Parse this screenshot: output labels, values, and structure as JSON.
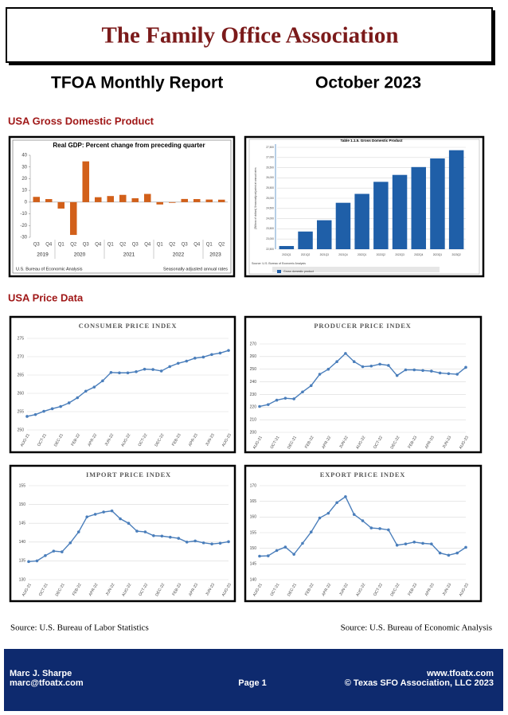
{
  "header": {
    "title": "The Family Office Association"
  },
  "report": {
    "title": "TFOA Monthly Report",
    "date": "October 2023"
  },
  "sections": {
    "gdp": "USA Gross Domestic Product",
    "prices": "USA Price Data"
  },
  "sources": {
    "left": "Source: U.S. Bureau of Labor Statistics",
    "right": "Source: U.S. Bureau of Economic Analysis"
  },
  "footer": {
    "name": "Marc J. Sharpe",
    "email": "marc@tfoatx.com",
    "page": "Page 1",
    "website": "www.tfoatx.com",
    "copyright": "© Texas SFO Association, LLC 2023"
  },
  "chart_data": [
    {
      "type": "bar",
      "title": "Real GDP: Percent change from preceding quarter",
      "categories": [
        "Q3",
        "Q4",
        "Q1",
        "Q2",
        "Q3",
        "Q4",
        "Q1",
        "Q2",
        "Q3",
        "Q4",
        "Q1",
        "Q2",
        "Q3",
        "Q4",
        "Q1",
        "Q2"
      ],
      "years": [
        "2019",
        null,
        "2020",
        null,
        null,
        null,
        "2021",
        null,
        null,
        null,
        "2022",
        null,
        null,
        null,
        "2023",
        null
      ],
      "values": [
        4.5,
        2.6,
        -5.5,
        -28.0,
        34.8,
        4.2,
        5.2,
        6.2,
        3.3,
        7.0,
        -2.0,
        -0.6,
        2.7,
        2.6,
        2.2,
        2.1
      ],
      "color": "#d2601a",
      "ylim": [
        -30,
        40
      ],
      "yticks": [
        -30,
        -20,
        -10,
        0,
        10,
        20,
        30,
        40
      ],
      "grid": false,
      "source": "U.S. Bureau of Economic Analysis",
      "note": "Seasonally adjusted annual rates"
    },
    {
      "type": "bar",
      "title": "Table 1.1.5. Gross Domestic Product",
      "ylabel": "[Billions of dollars] Seasonally adjusted at annual rates",
      "categories": [
        "2021Q1",
        "2021Q2",
        "2021Q3",
        "2021Q4",
        "2022Q1",
        "2022Q2",
        "2022Q3",
        "2022Q4",
        "2023Q1",
        "2023Q2"
      ],
      "series": [
        {
          "name": "Gross domestic product",
          "color": "#1f5fa8",
          "values": [
            22657,
            23368,
            23922,
            24778,
            25215,
            25806,
            26145,
            26531,
            26953,
            27357
          ]
        }
      ],
      "ylim": [
        22500,
        27500
      ],
      "yticks": [
        {
          "value": 22500,
          "label": "22,500"
        },
        {
          "value": 23000,
          "label": "23,000"
        },
        {
          "value": 23500,
          "label": "23,500"
        },
        {
          "value": 24000,
          "label": "24,000"
        },
        {
          "value": 24500,
          "label": "24,500"
        },
        {
          "value": 25000,
          "label": "25,000"
        },
        {
          "value": 25500,
          "label": "25,500"
        },
        {
          "value": 26000,
          "label": "26,000"
        },
        {
          "value": 26500,
          "label": "26,500"
        },
        {
          "value": 27000,
          "label": "27,000"
        },
        {
          "value": 27500,
          "label": "27,500"
        }
      ],
      "grid": true,
      "source": "Source: U.S. Bureau of Economic Analysis"
    },
    {
      "type": "line",
      "title": "CONSUMER PRICE INDEX",
      "categories": [
        "AUG-21",
        null,
        "OCT-21",
        null,
        "DEC-21",
        null,
        "FEB-22",
        null,
        "APR-22",
        null,
        "JUN-22",
        null,
        "AUG-22",
        null,
        "OCT-22",
        null,
        "DEC-22",
        null,
        "FEB-23",
        null,
        "APR-23",
        null,
        "JUN-23",
        null,
        "AUG-23"
      ],
      "values": [
        253.7,
        254.2,
        255.1,
        255.8,
        256.4,
        257.4,
        258.8,
        260.6,
        261.7,
        263.4,
        265.7,
        265.6,
        265.6,
        265.9,
        266.6,
        266.5,
        266.1,
        267.3,
        268.2,
        268.8,
        269.6,
        269.9,
        270.6,
        271.0,
        271.7
      ],
      "color": "#4a7ebb",
      "ylim": [
        250,
        275
      ],
      "yticks": [
        250,
        255,
        260,
        265,
        270,
        275
      ],
      "grid": true
    },
    {
      "type": "line",
      "title": "PRODUCER PRICE INDEX",
      "categories": [
        "AUG-21",
        null,
        "OCT-21",
        null,
        "DEC-21",
        null,
        "FEB-22",
        null,
        "APR-22",
        null,
        "JUN-22",
        null,
        "AUG-22",
        null,
        "OCT-22",
        null,
        "DEC-22",
        null,
        "FEB-23",
        null,
        "APR-23",
        null,
        "JUN-23",
        null,
        "AUG-23"
      ],
      "values": [
        220.5,
        222,
        225.5,
        227,
        226.5,
        232,
        237,
        246,
        250,
        256,
        262.5,
        256,
        252,
        252.5,
        254,
        253,
        245,
        249.5,
        249.5,
        249,
        248.5,
        247,
        246.5,
        246,
        251.5
      ],
      "color": "#4a7ebb",
      "ylim": [
        200,
        270
      ],
      "yticks": [
        200,
        210,
        220,
        230,
        240,
        250,
        260,
        270
      ],
      "grid": true
    },
    {
      "type": "line",
      "title": "IMPORT PRICE INDEX",
      "categories": [
        "AUG-21",
        null,
        "OCT-21",
        null,
        "DEC-21",
        null,
        "FEB-22",
        null,
        "APR-22",
        null,
        "JUN-22",
        null,
        "AUG-22",
        null,
        "OCT-22",
        null,
        "DEC-22",
        null,
        "FEB-23",
        null,
        "APR-23",
        null,
        "JUN-23",
        null,
        "AUG-23"
      ],
      "values": [
        134.8,
        135.0,
        136.4,
        137.6,
        137.4,
        139.8,
        142.7,
        146.7,
        147.4,
        148.0,
        148.3,
        146.2,
        145.0,
        142.9,
        142.7,
        141.7,
        141.6,
        141.3,
        141.0,
        140.0,
        140.3,
        139.8,
        139.5,
        139.7,
        140.1
      ],
      "color": "#4a7ebb",
      "ylim": [
        130,
        155
      ],
      "yticks": [
        130,
        135,
        140,
        145,
        150,
        155
      ],
      "grid": true
    },
    {
      "type": "line",
      "title": "EXPORT PRICE INDEX",
      "categories": [
        "AUG-21",
        null,
        "OCT-21",
        null,
        "DEC-21",
        null,
        "FEB-22",
        null,
        "APR-22",
        null,
        "JUN-22",
        null,
        "AUG-22",
        null,
        "OCT-22",
        null,
        "DEC-22",
        null,
        "FEB-23",
        null,
        "APR-23",
        null,
        "JUN-23",
        null,
        "AUG-23"
      ],
      "values": [
        147.5,
        147.6,
        149.3,
        150.4,
        148.1,
        151.6,
        155.2,
        159.7,
        161.2,
        164.6,
        166.5,
        160.8,
        158.8,
        156.5,
        156.3,
        155.9,
        151.0,
        151.4,
        152.0,
        151.6,
        151.4,
        148.5,
        147.8,
        148.5,
        150.3
      ],
      "color": "#4a7ebb",
      "ylim": [
        140,
        170
      ],
      "yticks": [
        140,
        145,
        150,
        155,
        160,
        165,
        170
      ],
      "grid": true
    }
  ]
}
